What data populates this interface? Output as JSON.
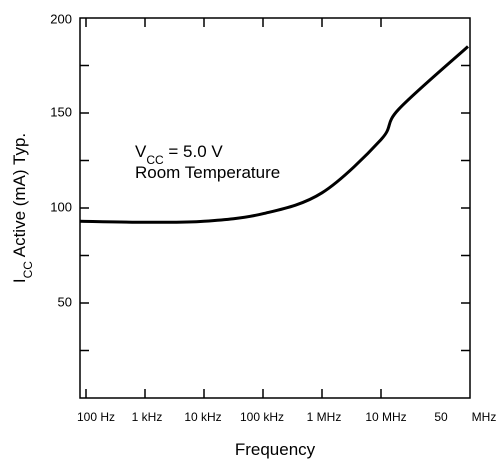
{
  "chart_data": {
    "type": "line",
    "xlabel": "Frequency",
    "ylabel": {
      "main": "I",
      "sub": "CC",
      "rest": " Active (mA) Typ."
    },
    "x_scale": "log",
    "x_tick_labels": [
      "100 Hz",
      "1 kHz",
      "10 kHz",
      "100 kHz",
      "1 MHz",
      "10 MHz",
      "50",
      "MHz"
    ],
    "y_ticks": [
      50,
      100,
      150,
      200
    ],
    "ylim": [
      0,
      200
    ],
    "annotation": {
      "line1_main": "V",
      "line1_sub": "CC",
      "line1_rest": " = 5.0 V",
      "line2": "Room Temperature"
    },
    "series": [
      {
        "x": [
          100,
          1000,
          10000,
          100000,
          1000000,
          10000000,
          20000000,
          50000000
        ],
        "y": [
          93,
          92.5,
          93,
          97,
          108,
          136,
          152,
          185
        ]
      }
    ],
    "grid": false,
    "line_color": "#000000"
  }
}
